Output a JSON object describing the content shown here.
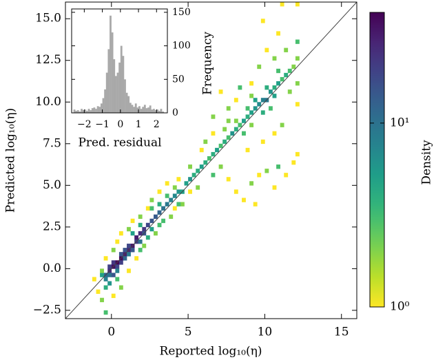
{
  "chart_data": [
    {
      "type": "heatmap",
      "x_label": "Reported log₁₀(η)",
      "y_label": "Predicted log₁₀(η)",
      "xlim": [
        -3,
        16
      ],
      "ylim": [
        -3,
        16
      ],
      "xticks": [
        0,
        5,
        10,
        15
      ],
      "yticks": [
        {
          "value": -2.5,
          "label": "−2.5"
        },
        {
          "value": 0,
          "label": "0.0"
        },
        {
          "value": 2.5,
          "label": "2.5"
        },
        {
          "value": 5,
          "label": "5.0"
        },
        {
          "value": 7.5,
          "label": "7.5"
        },
        {
          "value": 10,
          "label": "10.0"
        },
        {
          "value": 12.5,
          "label": "12.5"
        },
        {
          "value": 15,
          "label": "15.0"
        }
      ],
      "bin_size": 0.25,
      "identity_line": true,
      "colorbar": {
        "label": "Density",
        "clim": [
          1,
          40
        ],
        "log": true,
        "colormap": "viridis_r",
        "ticks": [
          {
            "value": 1,
            "label": "10⁰"
          },
          {
            "value": 10,
            "label": "10¹"
          }
        ]
      },
      "cells": [
        [
          0,
          0,
          35
        ],
        [
          0.25,
          0.25,
          40
        ],
        [
          0.5,
          0.5,
          38
        ],
        [
          0.75,
          0.75,
          30
        ],
        [
          1,
          1,
          28
        ],
        [
          1.25,
          1.25,
          32
        ],
        [
          1.5,
          1.75,
          30
        ],
        [
          1.75,
          2,
          25
        ],
        [
          2,
          2.25,
          22
        ],
        [
          2.25,
          2.5,
          18
        ],
        [
          2.5,
          2.75,
          15
        ],
        [
          2.75,
          3,
          14
        ],
        [
          3,
          3.25,
          12
        ],
        [
          3.25,
          3.5,
          10
        ],
        [
          3.5,
          3.75,
          9
        ],
        [
          -0.25,
          -0.25,
          25
        ],
        [
          -0.25,
          0,
          20
        ],
        [
          0,
          -0.5,
          15
        ],
        [
          0,
          0.25,
          22
        ],
        [
          0.25,
          0,
          18
        ],
        [
          0.5,
          0.25,
          20
        ],
        [
          0.5,
          0.75,
          15
        ],
        [
          0.75,
          0.5,
          12
        ],
        [
          1,
          1.25,
          18
        ],
        [
          1.25,
          1,
          14
        ],
        [
          1.5,
          1.5,
          20
        ],
        [
          1.75,
          1.5,
          10
        ],
        [
          2,
          2,
          15
        ],
        [
          -0.5,
          -0.5,
          12
        ],
        [
          -0.5,
          -0.75,
          8
        ],
        [
          -0.25,
          -1,
          6
        ],
        [
          -0.75,
          -0.5,
          5
        ],
        [
          -0.25,
          -0.5,
          10
        ],
        [
          0.25,
          -0.25,
          8
        ],
        [
          0.75,
          1,
          15
        ],
        [
          1,
          0.75,
          9
        ],
        [
          3.75,
          4,
          8
        ],
        [
          4,
          4.25,
          7
        ],
        [
          4.25,
          4.5,
          6
        ],
        [
          4.5,
          4.5,
          5
        ],
        [
          4.75,
          5,
          5
        ],
        [
          5,
          5.25,
          6
        ],
        [
          5.25,
          5.5,
          4
        ],
        [
          5.5,
          5.75,
          4
        ],
        [
          5.75,
          6,
          5
        ],
        [
          6,
          6.25,
          4
        ],
        [
          6.25,
          6.5,
          3
        ],
        [
          6.5,
          6.75,
          4
        ],
        [
          6.75,
          7,
          5
        ],
        [
          7,
          7.25,
          3
        ],
        [
          7.25,
          7.5,
          4
        ],
        [
          7.5,
          7.75,
          3
        ],
        [
          7.75,
          8,
          6
        ],
        [
          8,
          8.25,
          4
        ],
        [
          8.25,
          8.5,
          3
        ],
        [
          8.5,
          8.75,
          5
        ],
        [
          8.75,
          9,
          4
        ],
        [
          9,
          9.25,
          5
        ],
        [
          9.25,
          9.5,
          6
        ],
        [
          9.5,
          9.75,
          7
        ],
        [
          9.75,
          10,
          8
        ],
        [
          10,
          10,
          9
        ],
        [
          10.25,
          10.5,
          6
        ],
        [
          10.5,
          10.75,
          4
        ],
        [
          10.75,
          11,
          5
        ],
        [
          11,
          11.25,
          3
        ],
        [
          11.25,
          11.5,
          4
        ],
        [
          11.5,
          11.75,
          3
        ],
        [
          11.75,
          12,
          2
        ],
        [
          12,
          13.5,
          3
        ],
        [
          12,
          11,
          2
        ],
        [
          -1,
          -1.5,
          1
        ],
        [
          -1.25,
          -0.75,
          1
        ],
        [
          -0.75,
          -2,
          2
        ],
        [
          -0.5,
          -2.75,
          3
        ],
        [
          0,
          -1.75,
          1
        ],
        [
          0.5,
          -1.25,
          2
        ],
        [
          1,
          -0.25,
          1
        ],
        [
          1.5,
          0.5,
          1
        ],
        [
          2,
          1.25,
          2
        ],
        [
          -0.5,
          0.5,
          1
        ],
        [
          0,
          1,
          2
        ],
        [
          0.25,
          1.5,
          1
        ],
        [
          0.5,
          2,
          1
        ],
        [
          1,
          2.25,
          2
        ],
        [
          1.25,
          2.75,
          1
        ],
        [
          1.75,
          3,
          2
        ],
        [
          2.25,
          3.5,
          1
        ],
        [
          2.5,
          4,
          2
        ],
        [
          3,
          4.5,
          1
        ],
        [
          3.5,
          5,
          1
        ],
        [
          2.75,
          2,
          2
        ],
        [
          3.25,
          2.75,
          3
        ],
        [
          3.75,
          3,
          2
        ],
        [
          4,
          3.5,
          1
        ],
        [
          4.5,
          3.75,
          2
        ],
        [
          5,
          4.5,
          1
        ],
        [
          5.5,
          4.75,
          2
        ],
        [
          4.25,
          5.25,
          1
        ],
        [
          5,
          6,
          2
        ],
        [
          5.75,
          7,
          1
        ],
        [
          6,
          7.5,
          2
        ],
        [
          6.5,
          8,
          1
        ],
        [
          6.5,
          5.5,
          3
        ],
        [
          7,
          6,
          2
        ],
        [
          7.5,
          5.25,
          1
        ],
        [
          8,
          4.5,
          1
        ],
        [
          8.5,
          4,
          1
        ],
        [
          9.25,
          3.75,
          1
        ],
        [
          9,
          5,
          2
        ],
        [
          9.5,
          5.5,
          1
        ],
        [
          10,
          5.75,
          2
        ],
        [
          10.5,
          4.75,
          1
        ],
        [
          10.75,
          6,
          3
        ],
        [
          11.25,
          5.5,
          1
        ],
        [
          11.75,
          6.25,
          1
        ],
        [
          12,
          6.75,
          1
        ],
        [
          7.5,
          9.5,
          2
        ],
        [
          8,
          10,
          1
        ],
        [
          8.25,
          10.75,
          3
        ],
        [
          7,
          10.5,
          1
        ],
        [
          6.5,
          9,
          2
        ],
        [
          9,
          11,
          1
        ],
        [
          9.5,
          12,
          2
        ],
        [
          10,
          13,
          1
        ],
        [
          10.5,
          12.5,
          2
        ],
        [
          10.75,
          14,
          1
        ],
        [
          11,
          15.75,
          1
        ],
        [
          11.25,
          13,
          2
        ],
        [
          9.75,
          14.75,
          1
        ],
        [
          12,
          15.75,
          1
        ],
        [
          12,
          12.5,
          2
        ],
        [
          12,
          9.75,
          1
        ],
        [
          11,
          8.5,
          2
        ],
        [
          10.5,
          8,
          1
        ],
        [
          9.75,
          7.5,
          1
        ],
        [
          9,
          8.5,
          2
        ],
        [
          8.75,
          7,
          1
        ],
        [
          7.5,
          8.75,
          2
        ],
        [
          -0.5,
          -1.25,
          4
        ],
        [
          0.25,
          -0.75,
          3
        ],
        [
          -0.75,
          -0.25,
          2
        ],
        [
          1.75,
          1,
          3
        ],
        [
          2.25,
          1.75,
          4
        ],
        [
          2.5,
          2.25,
          5
        ],
        [
          3,
          2.5,
          3
        ],
        [
          1.25,
          2,
          5
        ],
        [
          1.75,
          2.5,
          4
        ],
        [
          2.5,
          3.5,
          3
        ],
        [
          3,
          3.75,
          4
        ],
        [
          3.5,
          4.25,
          3
        ],
        [
          4,
          4.75,
          2
        ],
        [
          4.25,
          3.75,
          3
        ],
        [
          9.25,
          10,
          5
        ],
        [
          9.75,
          9.25,
          4
        ],
        [
          10.25,
          9.5,
          3
        ],
        [
          10.5,
          10.25,
          5
        ],
        [
          8.75,
          9.5,
          3
        ],
        [
          9,
          10.25,
          2
        ],
        [
          10,
          10.75,
          4
        ],
        [
          10.75,
          11.75,
          3
        ],
        [
          11.5,
          10.5,
          2
        ],
        [
          8.5,
          8,
          3
        ],
        [
          8,
          8.75,
          2
        ],
        [
          7.25,
          8.25,
          2
        ]
      ]
    },
    {
      "type": "histogram",
      "x_label": "Pred. residual",
      "y_label": "Frequency",
      "xlim": [
        -2.7,
        2.6
      ],
      "ylim": [
        0,
        155
      ],
      "xticks": [
        {
          "value": -2,
          "label": "−2"
        },
        {
          "value": -1,
          "label": "−1"
        },
        0,
        1,
        2
      ],
      "yticks": [
        0,
        50,
        100,
        150
      ],
      "color": "#a9a9a9",
      "bins": [
        -2.6,
        -2.5,
        -2.4,
        -2.3,
        -2.2,
        -2.1,
        -2.0,
        -1.9,
        -1.8,
        -1.7,
        -1.6,
        -1.5,
        -1.4,
        -1.3,
        -1.2,
        -1.1,
        -1.0,
        -0.9,
        -0.8,
        -0.7,
        -0.6,
        -0.5,
        -0.4,
        -0.3,
        -0.2,
        -0.1,
        0,
        0.1,
        0.2,
        0.3,
        0.4,
        0.5,
        0.6,
        0.7,
        0.8,
        0.9,
        1.0,
        1.1,
        1.2,
        1.3,
        1.4,
        1.5,
        1.6,
        1.7,
        1.8,
        1.9,
        2.0,
        2.1,
        2.2,
        2.3,
        2.4
      ],
      "values": [
        5,
        3,
        4,
        2,
        6,
        4,
        5,
        3,
        6,
        4,
        7,
        8,
        6,
        10,
        9,
        14,
        22,
        35,
        60,
        95,
        145,
        120,
        80,
        55,
        60,
        75,
        100,
        85,
        50,
        30,
        25,
        15,
        12,
        9,
        14,
        8,
        10,
        6,
        9,
        12,
        7,
        8,
        11,
        5,
        6,
        4,
        5,
        3,
        6,
        2
      ]
    }
  ]
}
